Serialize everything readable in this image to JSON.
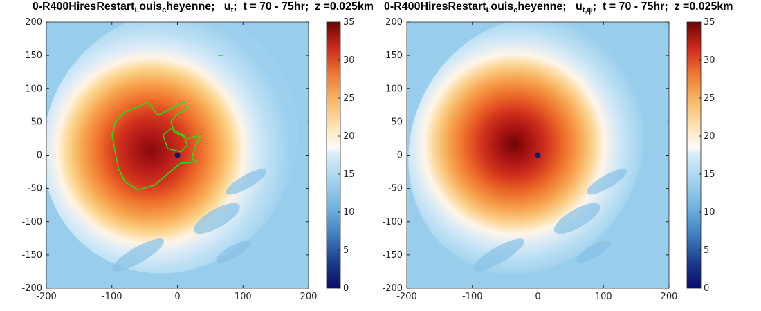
{
  "titles": {
    "left": "0-R400HiresRestart_Louis_cheyenne;   u_t;  t = 70 - 75hr;  z =0.025km",
    "right": "0-R400HiresRestart_Louis_cheyenne;   u_t,ψ;  t = 70 - 75hr;  z =0.025km"
  },
  "colors": {
    "background_low": "#99cded",
    "eye": "#0a1e6a",
    "max": "#6f0404",
    "contour_line": "#19e619"
  },
  "chart_data": [
    {
      "type": "heatmap",
      "title": "0-R400HiresRestart_Louis_cheyenne;   u_t;  t = 70 - 75hr;  z =0.025km",
      "xlim": [
        -200,
        200
      ],
      "ylim": [
        -200,
        200
      ],
      "x_ticks": [
        -200,
        -100,
        0,
        100,
        200
      ],
      "y_ticks": [
        -200,
        -150,
        -100,
        -50,
        0,
        50,
        100,
        150,
        200
      ],
      "colorbar": {
        "range": [
          0,
          35
        ],
        "ticks": [
          0,
          5,
          10,
          15,
          20,
          25,
          30,
          35
        ]
      },
      "vortex_center": [
        0,
        0
      ],
      "max_wind_approx": 33,
      "overlay_contour": true
    },
    {
      "type": "heatmap",
      "title": "0-R400HiresRestart_Louis_cheyenne;   u_t,ψ;  t = 70 - 75hr;  z =0.025km",
      "xlim": [
        -200,
        200
      ],
      "ylim": [
        -200,
        200
      ],
      "x_ticks": [
        -200,
        -100,
        0,
        100,
        200
      ],
      "y_ticks": [
        -200,
        -150,
        -100,
        -50,
        0,
        50,
        100,
        150,
        200
      ],
      "colorbar": {
        "range": [
          0,
          35
        ],
        "ticks": [
          0,
          5,
          10,
          15,
          20,
          25,
          30,
          35
        ]
      },
      "vortex_center": [
        0,
        0
      ],
      "max_wind_approx": 35,
      "overlay_contour": false
    }
  ]
}
